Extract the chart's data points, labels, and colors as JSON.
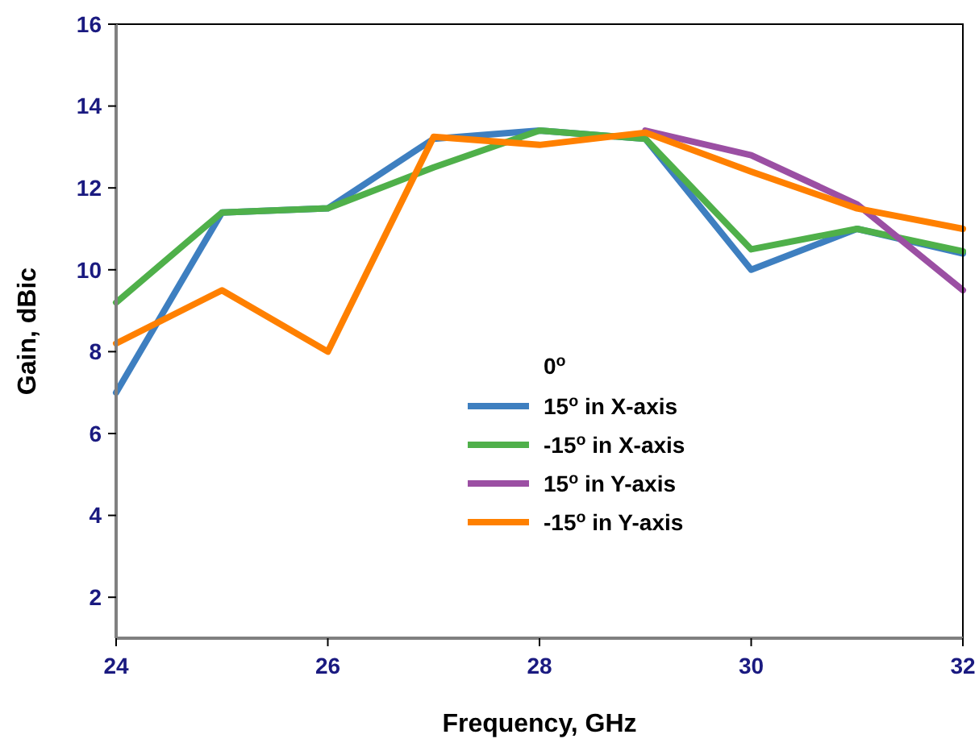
{
  "chart_data": {
    "type": "line",
    "xlabel": "Frequency, GHz",
    "ylabel": "Gain, dBic",
    "legend_title": "0$^{o}$",
    "x": [
      24,
      25,
      26,
      27,
      28,
      29,
      30,
      31,
      32
    ],
    "series": [
      {
        "name": "15$^{o}$ in X-axis",
        "color": "#3e7fc0",
        "values": [
          7.0,
          11.4,
          11.5,
          13.2,
          13.4,
          13.2,
          10.0,
          11.0,
          10.4
        ]
      },
      {
        "name": "-15$^{o}$ in X-axis",
        "color": "#4fb04a",
        "values": [
          9.2,
          11.4,
          11.5,
          12.5,
          13.4,
          13.2,
          10.5,
          11.0,
          10.45
        ]
      },
      {
        "name": "15$^{o}$ in Y-axis",
        "color": "#9b4fa3",
        "values": [
          null,
          null,
          null,
          null,
          null,
          13.4,
          12.8,
          11.6,
          9.5
        ]
      },
      {
        "name": "-15$^{o}$ in Y-axis",
        "color": "#ff8000",
        "values": [
          8.2,
          9.5,
          8.0,
          13.25,
          13.05,
          13.35,
          12.4,
          11.5,
          11.0
        ]
      }
    ],
    "xlim": [
      24,
      32
    ],
    "xticks": [
      24,
      26,
      28,
      30,
      32
    ],
    "ylim": [
      1,
      16
    ],
    "yticks": [
      2,
      4,
      6,
      8,
      10,
      12,
      14,
      16
    ],
    "grid": false,
    "legend": "bottom right",
    "line_style": "solid"
  }
}
